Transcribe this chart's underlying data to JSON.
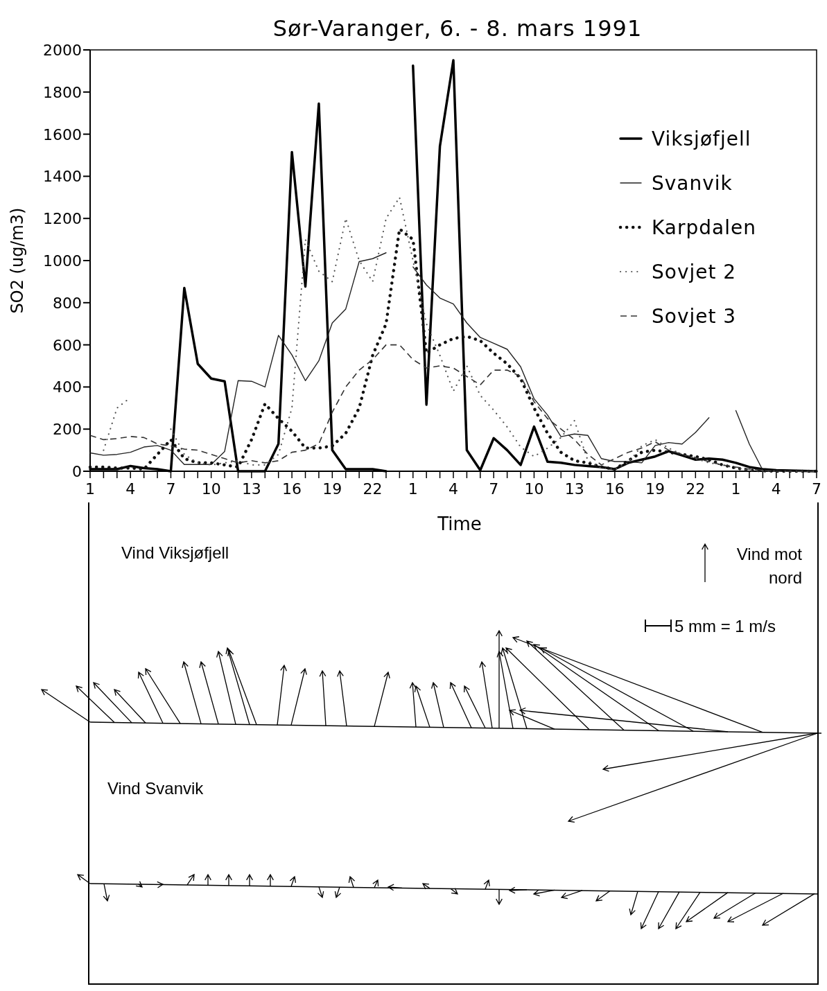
{
  "chart_data": [
    {
      "type": "line",
      "title": "Sør-Varanger, 6. - 8. mars 1991",
      "xlabel": "Time",
      "ylabel": "SO2 (ug/m3)",
      "legend": "top right",
      "grid": false,
      "x": [
        "1991-03-06T01:00",
        "1991-03-06T02:00",
        "1991-03-06T03:00",
        "1991-03-06T04:00",
        "1991-03-06T05:00",
        "1991-03-06T06:00",
        "1991-03-06T07:00",
        "1991-03-06T08:00",
        "1991-03-06T09:00",
        "1991-03-06T10:00",
        "1991-03-06T11:00",
        "1991-03-06T12:00",
        "1991-03-06T13:00",
        "1991-03-06T14:00",
        "1991-03-06T15:00",
        "1991-03-06T16:00",
        "1991-03-06T17:00",
        "1991-03-06T18:00",
        "1991-03-06T19:00",
        "1991-03-06T20:00",
        "1991-03-06T21:00",
        "1991-03-06T22:00",
        "1991-03-06T23:00",
        "1991-03-07T00:00",
        "1991-03-07T01:00",
        "1991-03-07T02:00",
        "1991-03-07T03:00",
        "1991-03-07T04:00",
        "1991-03-07T05:00",
        "1991-03-07T06:00",
        "1991-03-07T07:00",
        "1991-03-07T08:00",
        "1991-03-07T09:00",
        "1991-03-07T10:00",
        "1991-03-07T11:00",
        "1991-03-07T12:00",
        "1991-03-07T13:00",
        "1991-03-07T14:00",
        "1991-03-07T15:00",
        "1991-03-07T16:00",
        "1991-03-07T17:00",
        "1991-03-07T18:00",
        "1991-03-07T19:00",
        "1991-03-07T20:00",
        "1991-03-07T21:00",
        "1991-03-07T22:00",
        "1991-03-07T23:00",
        "1991-03-08T00:00",
        "1991-03-08T01:00",
        "1991-03-08T02:00",
        "1991-03-08T03:00",
        "1991-03-08T04:00",
        "1991-03-08T05:00",
        "1991-03-08T06:00",
        "1991-03-08T07:00"
      ],
      "xlim": [
        "1991-03-06T01:00",
        "1991-03-08T07:00"
      ],
      "ylim": [
        0,
        2000
      ],
      "yticks": [
        0,
        200,
        400,
        600,
        800,
        1000,
        1200,
        1400,
        1600,
        1800,
        2000
      ],
      "xticks": [
        {
          "value": "1991-03-06T01:00",
          "label": "1"
        },
        {
          "value": "1991-03-06T02:00",
          "label": null
        },
        {
          "value": "1991-03-06T03:00",
          "label": null
        },
        {
          "value": "1991-03-06T04:00",
          "label": "4"
        },
        {
          "value": "1991-03-06T05:00",
          "label": null
        },
        {
          "value": "1991-03-06T06:00",
          "label": null
        },
        {
          "value": "1991-03-06T07:00",
          "label": "7"
        },
        {
          "value": "1991-03-06T08:00",
          "label": null
        },
        {
          "value": "1991-03-06T09:00",
          "label": null
        },
        {
          "value": "1991-03-06T10:00",
          "label": "10"
        },
        {
          "value": "1991-03-06T11:00",
          "label": null
        },
        {
          "value": "1991-03-06T12:00",
          "label": null
        },
        {
          "value": "1991-03-06T13:00",
          "label": "13"
        },
        {
          "value": "1991-03-06T14:00",
          "label": null
        },
        {
          "value": "1991-03-06T15:00",
          "label": null
        },
        {
          "value": "1991-03-06T16:00",
          "label": "16"
        },
        {
          "value": "1991-03-06T17:00",
          "label": null
        },
        {
          "value": "1991-03-06T18:00",
          "label": null
        },
        {
          "value": "1991-03-06T19:00",
          "label": "19"
        },
        {
          "value": "1991-03-06T20:00",
          "label": null
        },
        {
          "value": "1991-03-06T21:00",
          "label": null
        },
        {
          "value": "1991-03-06T22:00",
          "label": "22"
        },
        {
          "value": "1991-03-06T23:00",
          "label": null
        },
        {
          "value": "1991-03-07T00:00",
          "label": null
        },
        {
          "value": "1991-03-07T01:00",
          "label": "1"
        },
        {
          "value": "1991-03-07T02:00",
          "label": null
        },
        {
          "value": "1991-03-07T03:00",
          "label": null
        },
        {
          "value": "1991-03-07T04:00",
          "label": "4"
        },
        {
          "value": "1991-03-07T05:00",
          "label": null
        },
        {
          "value": "1991-03-07T06:00",
          "label": null
        },
        {
          "value": "1991-03-07T07:00",
          "label": "7"
        },
        {
          "value": "1991-03-07T08:00",
          "label": null
        },
        {
          "value": "1991-03-07T09:00",
          "label": null
        },
        {
          "value": "1991-03-07T10:00",
          "label": "10"
        },
        {
          "value": "1991-03-07T11:00",
          "label": null
        },
        {
          "value": "1991-03-07T12:00",
          "label": null
        },
        {
          "value": "1991-03-07T13:00",
          "label": "13"
        },
        {
          "value": "1991-03-07T14:00",
          "label": null
        },
        {
          "value": "1991-03-07T15:00",
          "label": null
        },
        {
          "value": "1991-03-07T16:00",
          "label": "16"
        },
        {
          "value": "1991-03-07T17:00",
          "label": null
        },
        {
          "value": "1991-03-07T18:00",
          "label": null
        },
        {
          "value": "1991-03-07T19:00",
          "label": "19"
        },
        {
          "value": "1991-03-07T20:00",
          "label": null
        },
        {
          "value": "1991-03-07T21:00",
          "label": null
        },
        {
          "value": "1991-03-07T22:00",
          "label": "22"
        },
        {
          "value": "1991-03-07T23:00",
          "label": null
        },
        {
          "value": "1991-03-08T00:00",
          "label": null
        },
        {
          "value": "1991-03-08T01:00",
          "label": "1"
        },
        {
          "value": "1991-03-08T02:00",
          "label": null
        },
        {
          "value": "1991-03-08T03:00",
          "label": null
        },
        {
          "value": "1991-03-08T04:00",
          "label": "4"
        },
        {
          "value": "1991-03-08T05:00",
          "label": null
        },
        {
          "value": "1991-03-08T06:00",
          "label": null
        },
        {
          "value": "1991-03-08T07:00",
          "label": "7"
        }
      ],
      "series": [
        {
          "name": "Viksjøfjell",
          "color": "#000000",
          "line_style": "solid",
          "values": [
            10,
            10,
            10,
            25,
            15,
            10,
            0,
            870,
            510,
            440,
            427,
            0,
            0,
            0,
            130,
            1515,
            877,
            1745,
            100,
            10,
            10,
            10,
            0,
            null,
            1925,
            316,
            1543,
            1951,
            100,
            5,
            157,
            100,
            30,
            212,
            45,
            40,
            30,
            25,
            20,
            10,
            40,
            55,
            70,
            95,
            75,
            55,
            60,
            55,
            40,
            20,
            10,
            5,
            3,
            2,
            0
          ]
        },
        {
          "name": "Svanvik",
          "color": "#222222",
          "line_style": "solid",
          "values": [
            87,
            76,
            80,
            90,
            115,
            122,
            100,
            32,
            32,
            32,
            94,
            430,
            427,
            400,
            645,
            552,
            430,
            524,
            704,
            770,
            995,
            1009,
            1037,
            null,
            970,
            884,
            822,
            794,
            704,
            635,
            607,
            579,
            496,
            344,
            267,
            164,
            177,
            170,
            60,
            46,
            46,
            40,
            122,
            136,
            129,
            184,
            254,
            null,
            288,
            129,
            5,
            2,
            0,
            0,
            0
          ]
        },
        {
          "name": "Karpdalen",
          "color": "#111111",
          "line_style": "dotted",
          "values": [
            20,
            20,
            15,
            15,
            10,
            80,
            150,
            60,
            40,
            40,
            30,
            20,
            150,
            320,
            250,
            190,
            110,
            110,
            120,
            180,
            300,
            550,
            700,
            1150,
            1100,
            560,
            600,
            630,
            640,
            620,
            560,
            510,
            440,
            300,
            180,
            90,
            50,
            40,
            20,
            10,
            50,
            90,
            100,
            90,
            80,
            70,
            55,
            30,
            15,
            5,
            2,
            0,
            0,
            0,
            0
          ]
        },
        {
          "name": "Sovjet 2",
          "color": "#555555",
          "line_style": "dotted",
          "values": [
            null,
            100,
            300,
            350,
            null,
            null,
            200,
            80,
            40,
            30,
            40,
            50,
            30,
            30,
            80,
            300,
            1100,
            950,
            900,
            1200,
            1000,
            900,
            1200,
            1300,
            1000,
            700,
            550,
            380,
            500,
            360,
            290,
            210,
            115,
            70,
            110,
            160,
            240,
            50,
            15,
            10,
            40,
            120,
            150,
            110,
            80,
            60,
            40,
            30,
            15,
            5,
            2,
            0,
            0,
            0,
            0
          ]
        },
        {
          "name": "Sovjet 3",
          "color": "#333333",
          "line_style": "dashed",
          "values": [
            170,
            150,
            155,
            165,
            160,
            130,
            120,
            105,
            100,
            80,
            60,
            40,
            50,
            40,
            50,
            90,
            100,
            130,
            280,
            400,
            480,
            530,
            600,
            600,
            530,
            490,
            500,
            490,
            450,
            410,
            480,
            480,
            450,
            330,
            250,
            200,
            150,
            80,
            30,
            60,
            90,
            110,
            140,
            100,
            80,
            65,
            45,
            30,
            20,
            10,
            5,
            0,
            0,
            0,
            0
          ]
        }
      ]
    },
    {
      "type": "other",
      "annotations": [
        "Vind Viksjøfjell",
        "Vind Svanvik",
        "Vind mot nord",
        "5 mm = 1 m/s"
      ]
    }
  ]
}
